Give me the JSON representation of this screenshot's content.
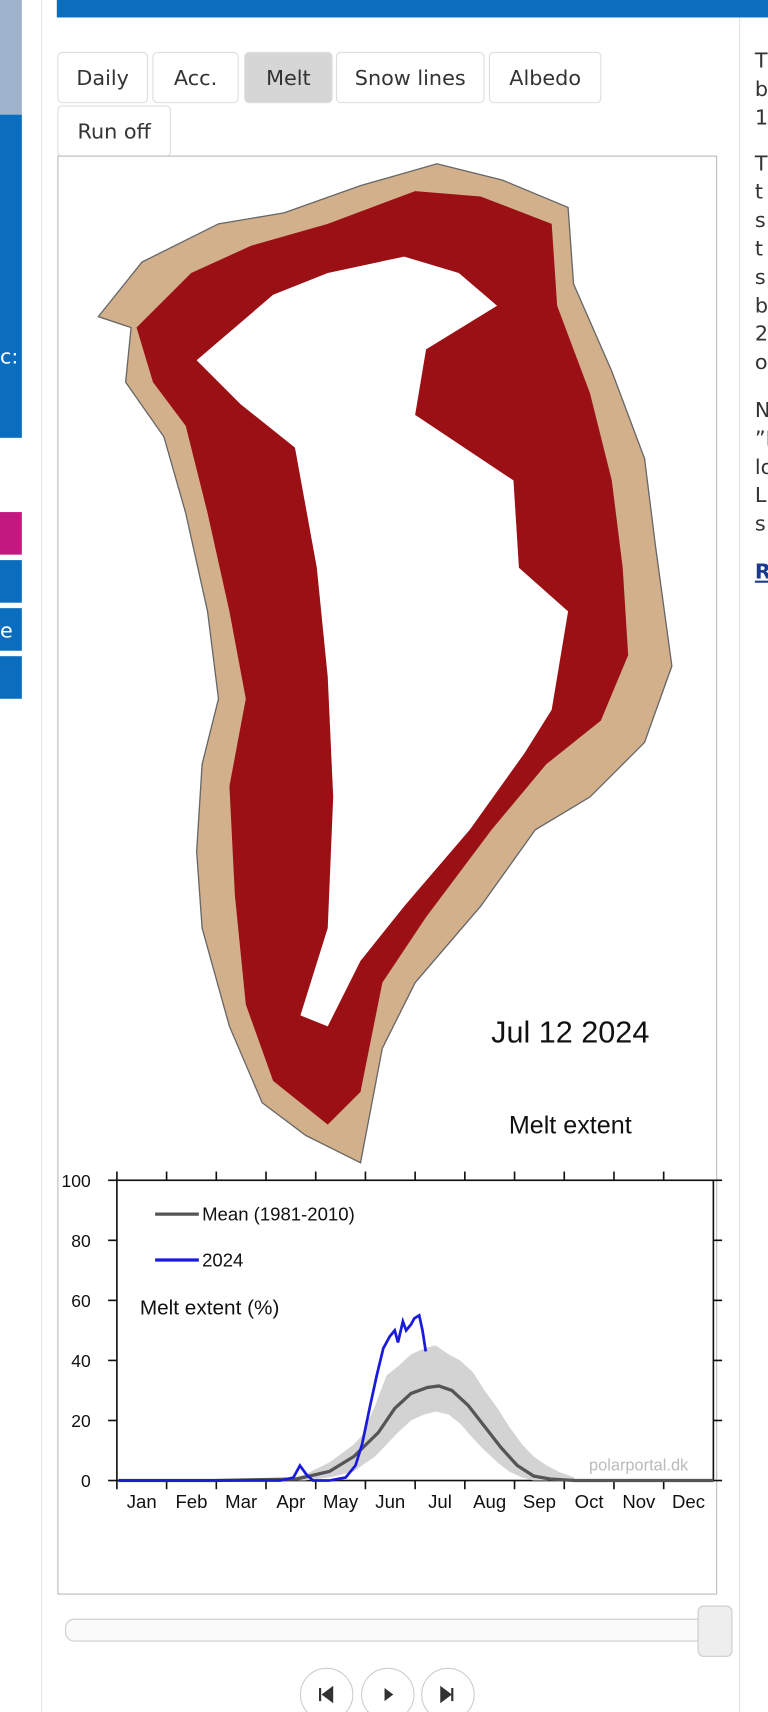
{
  "tabs": [
    "Daily",
    "Acc.",
    "Melt",
    "Snow lines",
    "Albedo",
    "Run off"
  ],
  "active_tab": "Melt",
  "sidebar_left": [
    "c:",
    "e"
  ],
  "right_column": [
    "T",
    "b",
    "1",
    "T",
    "t",
    "s",
    "t",
    "s",
    "b",
    "2",
    "o",
    "N",
    "”D",
    "lo",
    "L",
    "s",
    "R"
  ],
  "map": {
    "date": "Jul 12 2024",
    "label": "Melt extent"
  },
  "chart_data": {
    "type": "line",
    "annotation": "Melt extent (%)",
    "credit": "polarportal.dk",
    "categories": [
      "Jan",
      "Feb",
      "Mar",
      "Apr",
      "May",
      "Jun",
      "Jul",
      "Aug",
      "Sep",
      "Oct",
      "Nov",
      "Dec"
    ],
    "xlim": [
      0,
      365
    ],
    "ylim": [
      0,
      100
    ],
    "yticks": [
      0,
      20,
      40,
      60,
      80,
      100
    ],
    "band": {
      "color": "#d3d3d3",
      "x": [
        100,
        115,
        130,
        145,
        150,
        158,
        165,
        172,
        180,
        188,
        195,
        203,
        210,
        218,
        225,
        233,
        240,
        248,
        255,
        263,
        270,
        280
      ],
      "lower": [
        0,
        0,
        1,
        3,
        5,
        8,
        12,
        16,
        20,
        22,
        23,
        22,
        19,
        14,
        10,
        6,
        3,
        1,
        0,
        0,
        0,
        0
      ],
      "upper": [
        0,
        2,
        6,
        12,
        15,
        25,
        35,
        38,
        42,
        44,
        45,
        42,
        40,
        36,
        30,
        24,
        18,
        12,
        8,
        5,
        3,
        1
      ]
    },
    "series": [
      {
        "name": "Mean (1981-2010)",
        "color": "#555555",
        "x": [
          1,
          60,
          110,
          130,
          145,
          160,
          170,
          180,
          190,
          197,
          205,
          215,
          225,
          235,
          245,
          255,
          265,
          280,
          365
        ],
        "values": [
          0,
          0,
          0.5,
          3,
          8,
          16,
          24,
          29,
          31,
          31.5,
          30,
          25,
          18,
          11,
          5,
          1.5,
          0.5,
          0,
          0
        ]
      },
      {
        "name": "2024",
        "color": "#1a1adc",
        "x": [
          1,
          20,
          60,
          100,
          108,
          112,
          116,
          120,
          130,
          140,
          146,
          150,
          155,
          159,
          163,
          167,
          170,
          172,
          175,
          177,
          180,
          182,
          185,
          187,
          189
        ],
        "values": [
          0,
          0,
          0,
          0,
          1,
          5,
          2,
          0,
          0,
          1,
          5,
          12,
          25,
          35,
          44,
          48,
          50,
          46,
          53,
          50,
          52,
          54,
          55,
          50,
          43
        ]
      }
    ]
  }
}
